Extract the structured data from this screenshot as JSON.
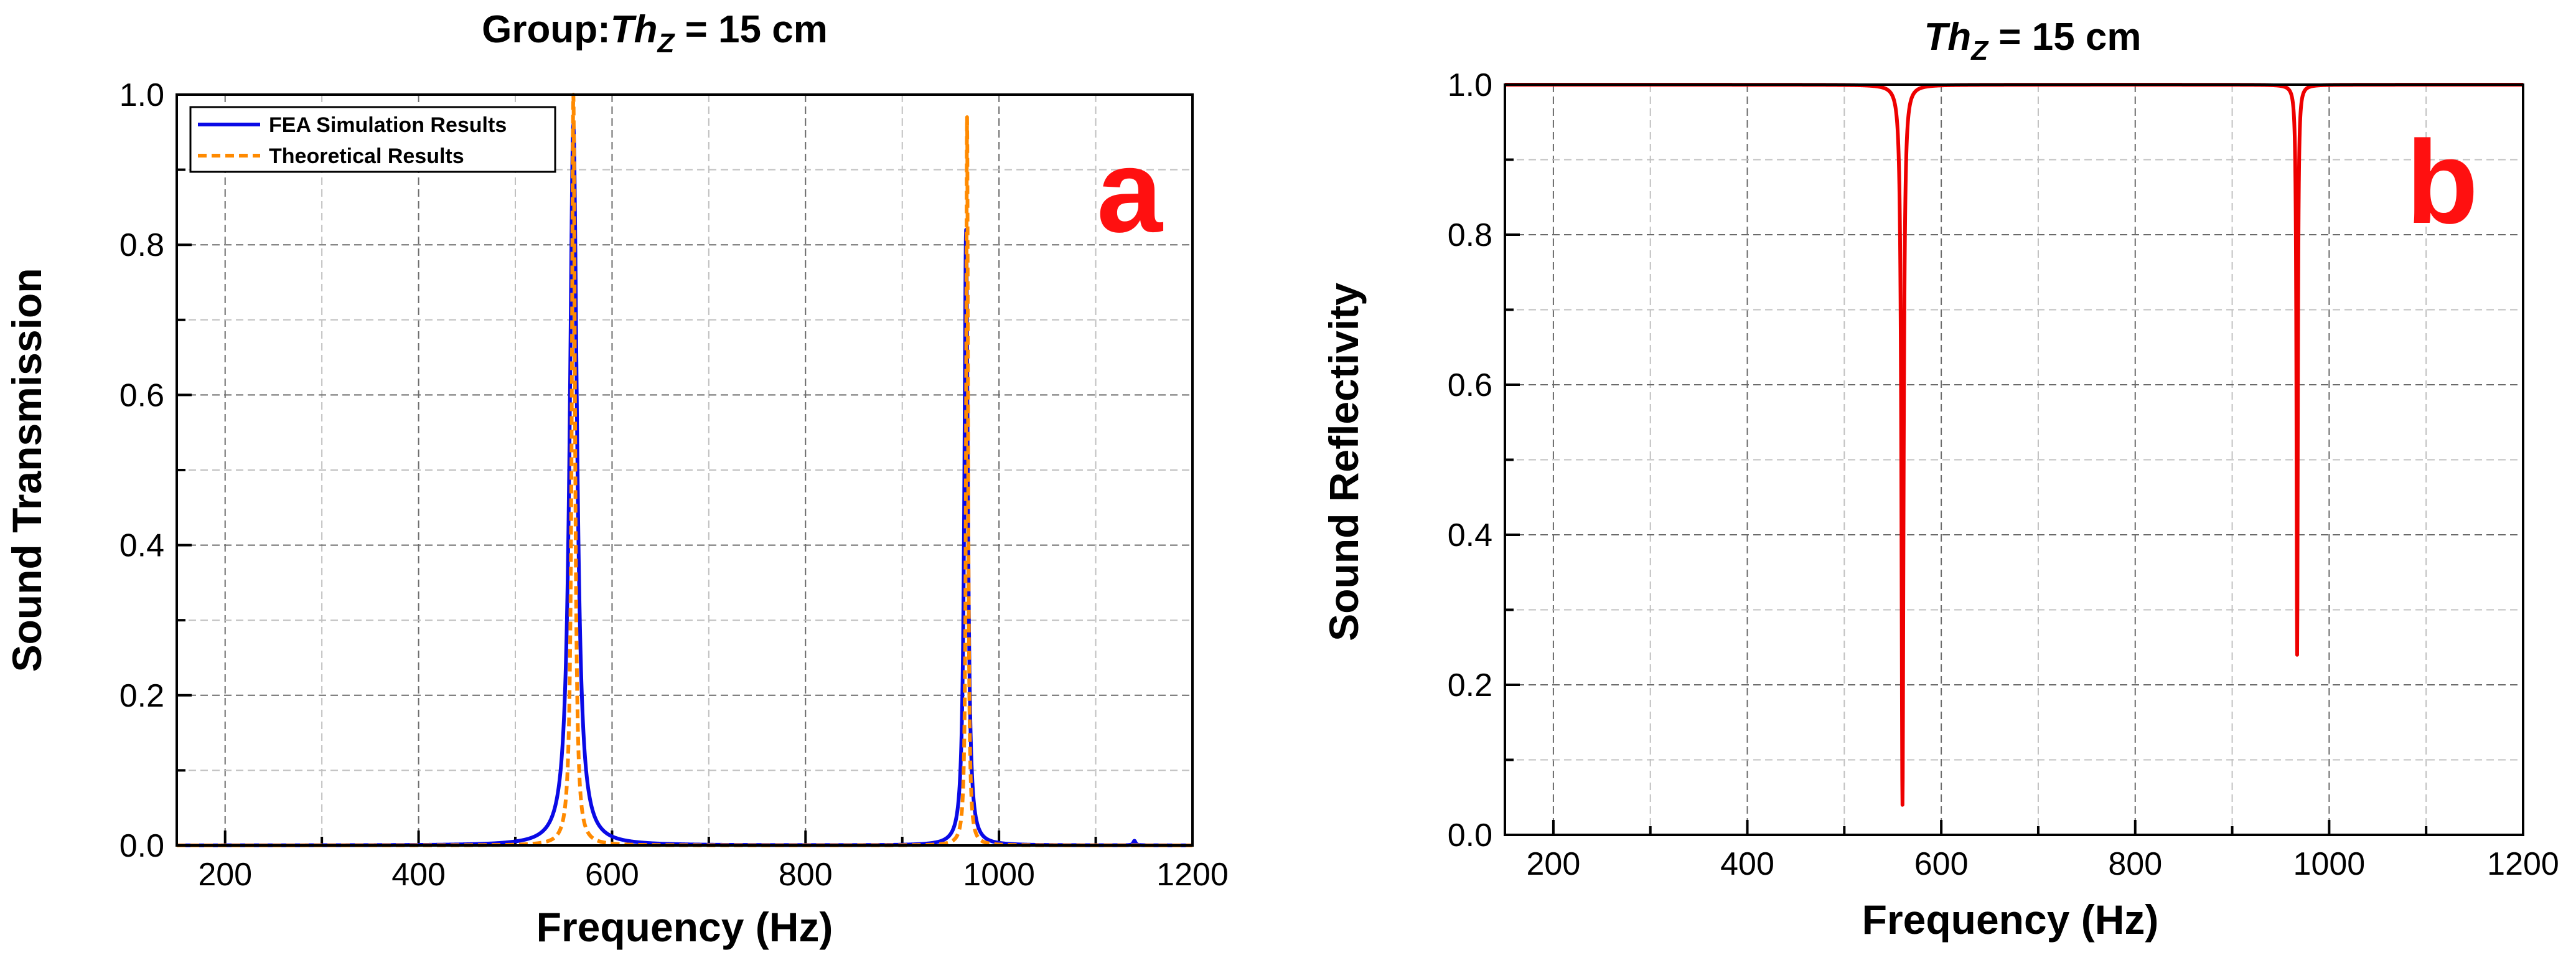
{
  "chart_data": [
    {
      "panel": "a",
      "type": "line",
      "title_prefix": "Group:",
      "title_symbol": "Th",
      "title_subscript": "Z",
      "title_suffix": " = 15 cm",
      "xlabel": "Frequency (Hz)",
      "ylabel": "Sound Transmission",
      "xlim": [
        150,
        1200
      ],
      "ylim": [
        0.0,
        1.0
      ],
      "xticks": [
        200,
        400,
        600,
        800,
        1000,
        1200
      ],
      "xtick_labels": [
        "200",
        "400",
        "600",
        "800",
        "1000",
        "1200"
      ],
      "yticks": [
        0.0,
        0.2,
        0.4,
        0.6,
        0.8,
        1.0
      ],
      "ytick_labels": [
        "0.0",
        "0.2",
        "0.4",
        "0.6",
        "0.8",
        "1.0"
      ],
      "grid": true,
      "legend_position": "top-left",
      "panel_letter": "a",
      "series": [
        {
          "name": "FEA Simulation Results",
          "color": "#0a0ae6",
          "style": "solid",
          "resonances": [
            {
              "f0": 560,
              "peak": 0.96,
              "halfwidth": 4.5
            },
            {
              "f0": 966,
              "peak": 0.82,
              "halfwidth": 2.2
            },
            {
              "f0": 1140,
              "peak": 0.006,
              "halfwidth": 1.5
            }
          ]
        },
        {
          "name": "Theoretical Results",
          "color": "#ff8a00",
          "style": "dashed",
          "resonances": [
            {
              "f0": 560,
              "peak": 1.0,
              "halfwidth": 2.0
            },
            {
              "f0": 967,
              "peak": 0.97,
              "halfwidth": 1.2
            }
          ]
        }
      ]
    },
    {
      "panel": "b",
      "type": "line",
      "title_symbol": "Th",
      "title_subscript": "Z",
      "title_suffix": " = 15 cm",
      "xlabel": "Frequency (Hz)",
      "ylabel": "Sound Reflectivity",
      "xlim": [
        150,
        1200
      ],
      "ylim": [
        0.0,
        1.0
      ],
      "xticks": [
        200,
        400,
        600,
        800,
        1000,
        1200
      ],
      "xtick_labels": [
        "200",
        "400",
        "600",
        "800",
        "1000",
        "1200"
      ],
      "yticks": [
        0.0,
        0.2,
        0.4,
        0.6,
        0.8,
        1.0
      ],
      "ytick_labels": [
        "0.0",
        "0.2",
        "0.4",
        "0.6",
        "0.8",
        "1.0"
      ],
      "grid": true,
      "panel_letter": "b",
      "series": [
        {
          "name": "Sound Reflectivity",
          "color": "#ee0000",
          "style": "solid",
          "baseline": 1.0,
          "dips": [
            {
              "f0": 560,
              "minimum": 0.04,
              "halfwidth": 1.3
            },
            {
              "f0": 967,
              "minimum": 0.24,
              "halfwidth": 0.8
            }
          ]
        }
      ]
    }
  ]
}
